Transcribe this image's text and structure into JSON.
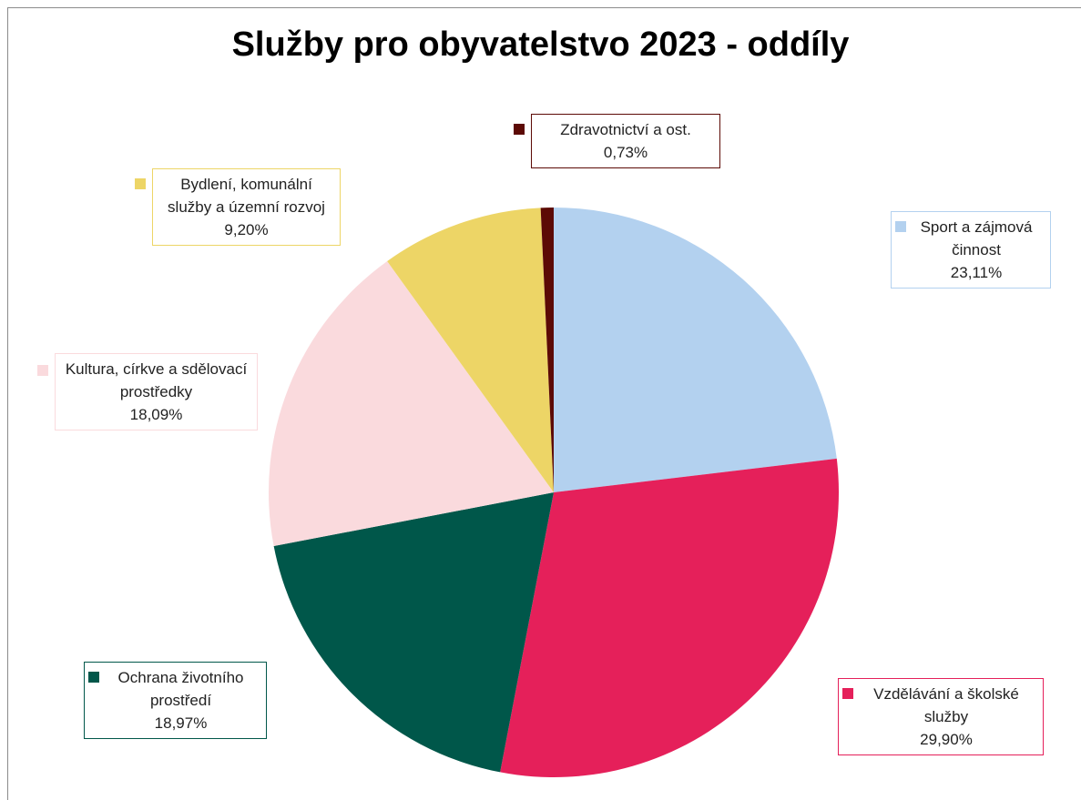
{
  "chart_data": {
    "type": "pie",
    "title": "Služby pro obyvatelstvo 2023 - oddíly",
    "categories": [
      "Sport a zájmová činnost",
      "Vzdělávání a školské služby",
      "Ochrana životního prostředí",
      "Kultura, církve a sdělovací prostředky",
      "Bydlení, komunální služby a územní rozvoj",
      "Zdravotnictví a ost."
    ],
    "values": [
      23.11,
      29.9,
      18.97,
      18.09,
      9.2,
      0.73
    ],
    "value_labels": [
      "23,11%",
      "29,90%",
      "18,97%",
      "18,09%",
      "9,20%",
      "0,73%"
    ],
    "colors": [
      "#b3d1ef",
      "#e5205a",
      "#00574a",
      "#fadadd",
      "#edd566",
      "#5c0a05"
    ]
  }
}
